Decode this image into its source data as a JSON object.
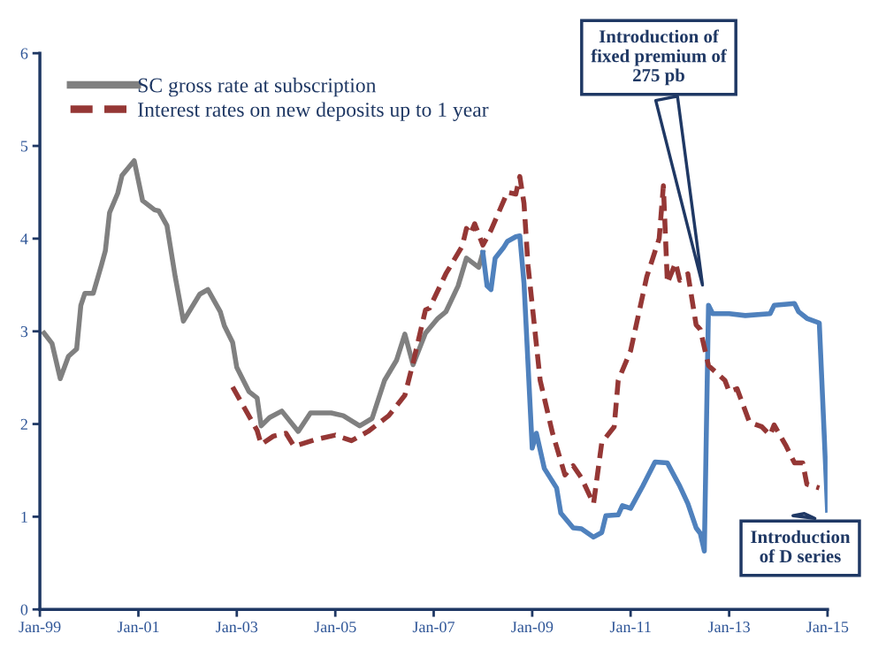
{
  "chart_data": {
    "type": "line",
    "xlim": [
      "1999-01",
      "2015-01"
    ],
    "xticks": [
      {
        "value": "1999-01",
        "label": "Jan-99"
      },
      {
        "value": "2001-01",
        "label": "Jan-01"
      },
      {
        "value": "2003-01",
        "label": "Jan-03"
      },
      {
        "value": "2005-01",
        "label": "Jan-05"
      },
      {
        "value": "2007-01",
        "label": "Jan-07"
      },
      {
        "value": "2009-01",
        "label": "Jan-09"
      },
      {
        "value": "2011-01",
        "label": "Jan-11"
      },
      {
        "value": "2013-01",
        "label": "Jan-13"
      },
      {
        "value": "2015-01",
        "label": "Jan-15"
      }
    ],
    "ylim": [
      0,
      6
    ],
    "yticks": [
      0,
      1,
      2,
      3,
      4,
      5,
      6
    ],
    "grid": false,
    "legend": "top left",
    "marker": "none",
    "series": [
      {
        "name": "SC gross rate at subscription",
        "color": "#808080",
        "line_style": "solid",
        "x": [
          "1999-02",
          "1999-04",
          "1999-06",
          "1999-08",
          "1999-10",
          "1999-11",
          "1999-12",
          "2000-02",
          "2000-04",
          "2000-05",
          "2000-06",
          "2000-08",
          "2000-09",
          "2000-12",
          "2001-02",
          "2001-05",
          "2001-06",
          "2001-08",
          "2001-10",
          "2001-12",
          "2002-04",
          "2002-06",
          "2002-09",
          "2002-10",
          "2002-12",
          "2003-01",
          "2003-04",
          "2003-06",
          "2003-07",
          "2003-09",
          "2003-12",
          "2004-04",
          "2004-07",
          "2004-12",
          "2005-03",
          "2005-07",
          "2005-10",
          "2006-01",
          "2006-04",
          "2006-06",
          "2006-08",
          "2006-11",
          "2007-02",
          "2007-04",
          "2007-07",
          "2007-09",
          "2007-12",
          "2008-01"
        ],
        "values": [
          2.98,
          2.87,
          2.49,
          2.73,
          2.81,
          3.28,
          3.41,
          3.41,
          3.71,
          3.87,
          4.28,
          4.49,
          4.68,
          4.84,
          4.41,
          4.31,
          4.3,
          4.14,
          3.59,
          3.11,
          3.4,
          3.45,
          3.21,
          3.06,
          2.88,
          2.61,
          2.35,
          2.28,
          1.98,
          2.07,
          2.14,
          1.92,
          2.12,
          2.12,
          2.09,
          1.98,
          2.06,
          2.47,
          2.69,
          2.97,
          2.64,
          2.98,
          3.14,
          3.21,
          3.49,
          3.79,
          3.69,
          3.85
        ]
      },
      {
        "color": "#4f81bd",
        "line_style": "solid",
        "x": [
          "2008-01",
          "2008-02",
          "2008-03",
          "2008-04",
          "2008-06",
          "2008-07",
          "2008-09",
          "2008-10",
          "2008-11",
          "2009-01",
          "2009-02",
          "2009-04",
          "2009-07",
          "2009-08",
          "2009-11",
          "2010-01",
          "2010-04",
          "2010-06",
          "2010-07",
          "2010-10",
          "2010-11",
          "2011-01",
          "2011-04",
          "2011-07",
          "2011-10",
          "2012-01",
          "2012-03",
          "2012-05",
          "2012-06",
          "2012-07",
          "2012-08",
          "2012-09",
          "2013-01",
          "2013-05",
          "2013-11",
          "2013-12",
          "2014-05",
          "2014-06",
          "2014-08",
          "2014-11",
          "2015-01"
        ],
        "values": [
          3.85,
          3.49,
          3.45,
          3.79,
          3.9,
          3.97,
          4.02,
          4.03,
          3.52,
          1.74,
          1.9,
          1.52,
          1.31,
          1.04,
          0.88,
          0.87,
          0.78,
          0.83,
          1.01,
          1.02,
          1.12,
          1.09,
          1.33,
          1.59,
          1.58,
          1.33,
          1.14,
          0.88,
          0.82,
          0.63,
          3.28,
          3.19,
          3.19,
          3.17,
          3.19,
          3.28,
          3.3,
          3.21,
          3.14,
          3.09,
          1.07
        ]
      },
      {
        "name": "Interest rates on new deposits up to 1 year",
        "color": "#953735",
        "line_style": "dashed",
        "x": [
          "2002-12",
          "2003-06",
          "2003-07",
          "2003-10",
          "2004-01",
          "2004-03",
          "2004-08",
          "2005-01",
          "2005-05",
          "2005-09",
          "2006-02",
          "2006-06",
          "2006-08",
          "2006-11",
          "2006-12",
          "2007-04",
          "2007-08",
          "2007-09",
          "2007-10",
          "2007-11",
          "2008-01",
          "2008-03",
          "2008-07",
          "2008-09",
          "2008-10",
          "2008-11",
          "2008-12",
          "2009-03",
          "2009-06",
          "2009-09",
          "2009-11",
          "2010-01",
          "2010-04",
          "2010-06",
          "2010-09",
          "2010-10",
          "2011-01",
          "2011-05",
          "2011-08",
          "2011-09",
          "2011-10",
          "2011-12",
          "2012-01",
          "2012-03",
          "2012-05",
          "2012-06",
          "2012-08",
          "2012-12",
          "2013-01",
          "2013-03",
          "2013-06",
          "2013-09",
          "2013-11",
          "2013-12",
          "2014-03",
          "2014-05",
          "2014-07",
          "2014-08",
          "2014-11"
        ],
        "values": [
          2.4,
          1.93,
          1.78,
          1.87,
          1.9,
          1.76,
          1.83,
          1.88,
          1.82,
          1.92,
          2.09,
          2.31,
          2.66,
          3.23,
          3.25,
          3.62,
          3.92,
          4.11,
          4.05,
          4.16,
          3.93,
          4.09,
          4.5,
          4.48,
          4.67,
          4.38,
          3.71,
          2.47,
          1.9,
          1.45,
          1.55,
          1.42,
          1.14,
          1.8,
          1.97,
          2.47,
          2.79,
          3.59,
          4.0,
          4.57,
          3.52,
          3.74,
          3.55,
          3.62,
          3.07,
          3.02,
          2.63,
          2.47,
          2.35,
          2.38,
          2.02,
          1.97,
          1.88,
          1.99,
          1.76,
          1.58,
          1.58,
          1.35,
          1.31
        ]
      }
    ],
    "annotations": [
      "Introduction of\nfixed premium of\n275 pb",
      "Introduction\nof D series"
    ]
  }
}
